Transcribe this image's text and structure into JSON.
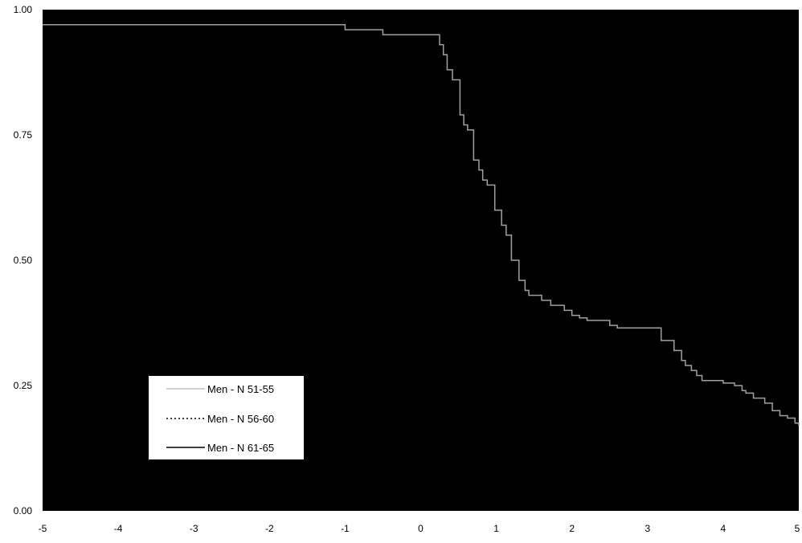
{
  "chart_data": {
    "type": "line",
    "title": "",
    "xlabel": "",
    "ylabel": "",
    "xlim": [
      -5,
      5
    ],
    "ylim": [
      0,
      1
    ],
    "x_ticks": [
      "-5",
      "-4",
      "-3",
      "-2",
      "-1",
      "0",
      "1",
      "2",
      "3",
      "4",
      "5"
    ],
    "y_ticks": [
      "0.00",
      "0.25",
      "0.50",
      "0.75",
      "1.00"
    ],
    "plot_background": "#000000",
    "legend_position": "lower-left",
    "series": [
      {
        "name": "Men - N 51-55",
        "color": "#a0a0a0",
        "style": "solid",
        "x": [
          -5,
          -1.0,
          -0.5,
          0.25,
          0.3,
          0.35,
          0.42,
          0.52,
          0.57,
          0.62,
          0.7,
          0.77,
          0.82,
          0.88,
          0.98,
          1.07,
          1.13,
          1.2,
          1.3,
          1.38,
          1.43,
          1.52,
          1.6,
          1.72,
          1.9,
          2.0,
          2.1,
          2.2,
          2.5,
          2.6,
          3.18,
          3.35,
          3.45,
          3.5,
          3.58,
          3.65,
          3.72,
          4.0,
          4.15,
          4.25,
          4.3,
          4.4,
          4.55,
          4.65,
          4.75,
          4.85,
          4.95,
          5.0
        ],
        "y": [
          0.97,
          0.96,
          0.95,
          0.93,
          0.91,
          0.88,
          0.86,
          0.79,
          0.77,
          0.76,
          0.7,
          0.68,
          0.66,
          0.65,
          0.6,
          0.57,
          0.55,
          0.5,
          0.46,
          0.44,
          0.43,
          0.43,
          0.42,
          0.41,
          0.4,
          0.39,
          0.385,
          0.38,
          0.37,
          0.365,
          0.34,
          0.32,
          0.3,
          0.29,
          0.28,
          0.27,
          0.26,
          0.255,
          0.25,
          0.24,
          0.235,
          0.225,
          0.215,
          0.2,
          0.19,
          0.185,
          0.175,
          0.17
        ]
      },
      {
        "name": "Men - N 56-60",
        "color": "#000000",
        "style": "dotted",
        "x": [],
        "y": []
      },
      {
        "name": "Men - N 61-65",
        "color": "#000000",
        "style": "solid",
        "x": [],
        "y": []
      }
    ]
  }
}
